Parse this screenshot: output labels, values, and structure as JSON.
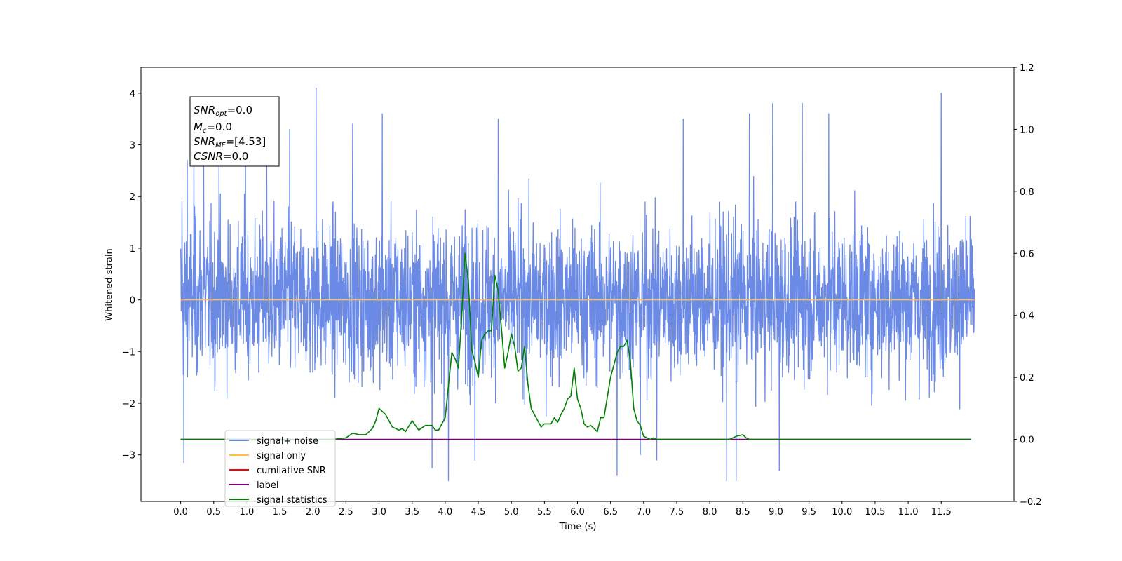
{
  "chart_data": {
    "type": "line",
    "xlabel": "Time (s)",
    "ylabel": "Whitened strain",
    "xlim": [
      -0.6,
      12.6
    ],
    "ylim": [
      -3.9,
      4.5
    ],
    "ylim_right": [
      -0.2,
      1.2
    ],
    "x_ticks": [
      "0.0",
      "0.5",
      "1.0",
      "1.5",
      "2.0",
      "2.5",
      "3.0",
      "3.5",
      "4.0",
      "4.5",
      "5.0",
      "5.5",
      "6.0",
      "6.5",
      "7.0",
      "7.5",
      "8.0",
      "8.5",
      "9.0",
      "9.5",
      "10.0",
      "10.5",
      "11.0",
      "11.5"
    ],
    "y_ticks_left": [
      "−3",
      "−2",
      "−1",
      "0",
      "1",
      "2",
      "3",
      "4"
    ],
    "y_ticks_right": [
      "−0.2",
      "0.0",
      "0.2",
      "0.4",
      "0.6",
      "0.8",
      "1.0",
      "1.2"
    ],
    "grid": false,
    "legend_position": "lower-left",
    "info_box": {
      "snr_opt": {
        "sym": "SNR",
        "sub": "opt",
        "val": "=0.0"
      },
      "mc": {
        "sym": "M",
        "sub": "c",
        "val": "=0.0"
      },
      "snr_mf": {
        "sym": "SNR",
        "sub": "MF",
        "val": "=[4.53]"
      },
      "csnr": {
        "sym": "CSNR",
        "sub": "",
        "val": "=0.0"
      }
    },
    "series": [
      {
        "name": "signal+ noise",
        "color": "#6b8ae6",
        "axis": "left",
        "kind": "noise",
        "x_range": [
          0,
          12
        ],
        "amplitude_range": [
          -3.5,
          4.1
        ],
        "notable_peaks": [
          [
            0.02,
            1.9
          ],
          [
            0.05,
            -3.15
          ],
          [
            0.1,
            2.7
          ],
          [
            0.2,
            2.9
          ],
          [
            0.35,
            2.9
          ],
          [
            0.58,
            2.6
          ],
          [
            0.98,
            3.1
          ],
          [
            1.3,
            3.3
          ],
          [
            1.65,
            3.3
          ],
          [
            2.05,
            4.1
          ],
          [
            2.6,
            3.4
          ],
          [
            3.05,
            3.6
          ],
          [
            3.8,
            -3.25
          ],
          [
            4.05,
            -3.5
          ],
          [
            4.45,
            -3.1
          ],
          [
            4.8,
            3.5
          ],
          [
            6.95,
            -3.0
          ],
          [
            6.6,
            -3.4
          ],
          [
            7.2,
            -3.1
          ],
          [
            7.6,
            3.5
          ],
          [
            8.25,
            -3.5
          ],
          [
            8.4,
            -3.5
          ],
          [
            8.6,
            3.6
          ],
          [
            8.95,
            3.8
          ],
          [
            9.05,
            -3.3
          ],
          [
            9.4,
            3.8
          ],
          [
            9.8,
            3.6
          ],
          [
            11.5,
            4.0
          ]
        ]
      },
      {
        "name": "signal only",
        "color": "#ffbf40",
        "axis": "left",
        "kind": "line",
        "x": [
          0,
          12
        ],
        "y": [
          0,
          0
        ]
      },
      {
        "name": "cumilative SNR",
        "color": "#ff0000",
        "axis": "right",
        "kind": "line",
        "x": [],
        "y": []
      },
      {
        "name": "label",
        "color": "#800080",
        "axis": "right",
        "kind": "line",
        "x": [
          0,
          11.95
        ],
        "y": [
          0,
          0
        ]
      },
      {
        "name": "signal statistics",
        "color": "#008000",
        "axis": "right",
        "kind": "line",
        "x": [
          0.0,
          2.1,
          2.3,
          2.5,
          2.6,
          2.7,
          2.8,
          2.9,
          2.95,
          3.0,
          3.1,
          3.2,
          3.3,
          3.35,
          3.4,
          3.5,
          3.6,
          3.7,
          3.8,
          3.85,
          3.9,
          4.0,
          4.1,
          4.15,
          4.2,
          4.25,
          4.3,
          4.35,
          4.4,
          4.45,
          4.5,
          4.55,
          4.6,
          4.65,
          4.7,
          4.75,
          4.8,
          4.85,
          4.9,
          4.95,
          5.0,
          5.05,
          5.1,
          5.15,
          5.2,
          5.25,
          5.3,
          5.35,
          5.4,
          5.45,
          5.5,
          5.6,
          5.65,
          5.7,
          5.75,
          5.8,
          5.85,
          5.9,
          5.95,
          6.0,
          6.05,
          6.1,
          6.15,
          6.2,
          6.25,
          6.3,
          6.35,
          6.4,
          6.5,
          6.6,
          6.65,
          6.7,
          6.75,
          6.8,
          6.85,
          6.9,
          6.95,
          7.0,
          7.05,
          7.1,
          7.15,
          7.2,
          7.25,
          7.3,
          7.4,
          7.5,
          7.6,
          7.7,
          7.8,
          8.0,
          8.3,
          8.4,
          8.5,
          8.55,
          8.6,
          8.7,
          8.8,
          9.0,
          10.0,
          11.0,
          11.95
        ],
        "y": [
          0.0,
          0.0,
          0.0,
          0.005,
          0.02,
          0.015,
          0.015,
          0.035,
          0.06,
          0.1,
          0.08,
          0.04,
          0.03,
          0.035,
          0.025,
          0.06,
          0.03,
          0.045,
          0.045,
          0.03,
          0.03,
          0.07,
          0.28,
          0.26,
          0.23,
          0.4,
          0.6,
          0.51,
          0.29,
          0.25,
          0.2,
          0.32,
          0.34,
          0.35,
          0.35,
          0.53,
          0.48,
          0.36,
          0.23,
          0.28,
          0.34,
          0.3,
          0.22,
          0.23,
          0.3,
          0.18,
          0.1,
          0.08,
          0.06,
          0.04,
          0.05,
          0.05,
          0.07,
          0.055,
          0.08,
          0.1,
          0.13,
          0.14,
          0.23,
          0.13,
          0.1,
          0.05,
          0.04,
          0.045,
          0.035,
          0.025,
          0.07,
          0.07,
          0.2,
          0.28,
          0.3,
          0.3,
          0.32,
          0.25,
          0.1,
          0.06,
          0.045,
          0.01,
          0.005,
          0.0,
          0.005,
          0.0,
          0.0,
          0.0,
          0.0,
          0.0,
          0.0,
          0.0,
          0.0,
          0.0,
          0.0,
          0.01,
          0.015,
          0.005,
          0.0,
          0.0,
          0.0,
          0.0,
          0.0,
          0.0,
          0.0
        ]
      }
    ]
  }
}
